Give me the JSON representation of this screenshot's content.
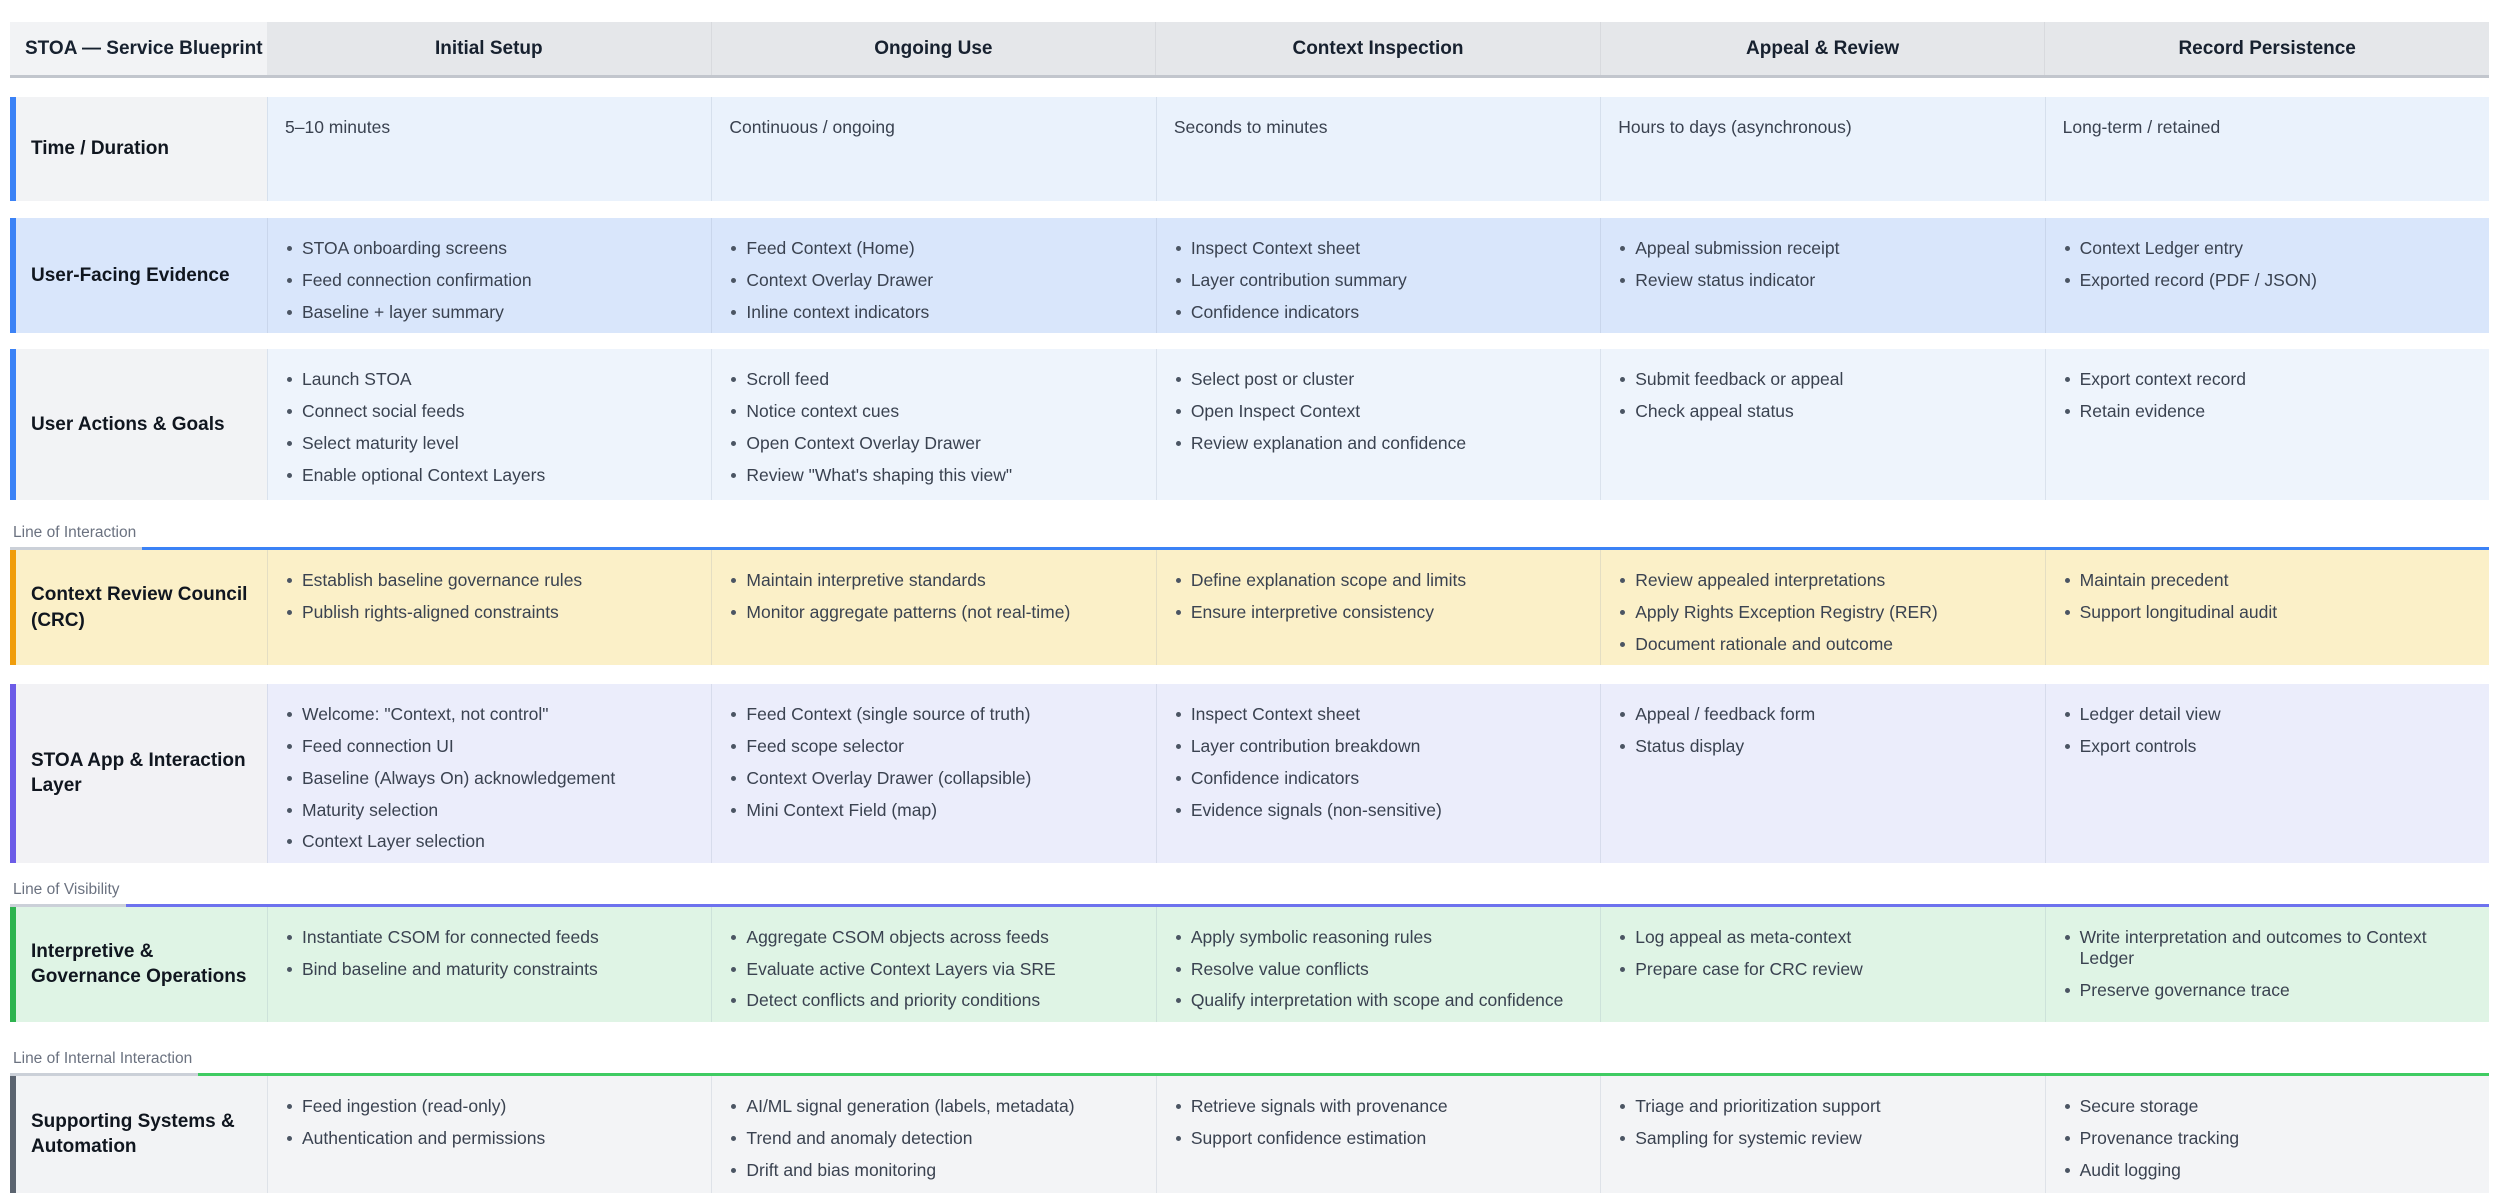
{
  "title": "STOA — Service Blueprint",
  "columns": [
    "Initial Setup",
    "Ongoing Use",
    "Context Inspection",
    "Appeal & Review",
    "Record Persistence"
  ],
  "sections": [
    {
      "kind": "row",
      "id": "time-duration",
      "label": "Time / Duration",
      "accent": "#3b82f6",
      "label_bg": "#f2f3f5",
      "cell_bg": "#eaf2fc",
      "cell_type": "text",
      "cells": [
        "5–10 minutes",
        "Continuous / ongoing",
        "Seconds to minutes",
        "Hours to days (asynchronous)",
        "Long-term / retained"
      ]
    },
    {
      "kind": "row",
      "id": "user-facing-evidence",
      "label": "User-Facing Evidence",
      "accent": "#3b82f6",
      "label_bg": "#d9e6fb",
      "cell_bg": "#d9e6fb",
      "cell_type": "bullets",
      "cells": [
        [
          "STOA onboarding screens",
          "Feed connection confirmation",
          "Baseline + layer summary"
        ],
        [
          "Feed Context (Home)",
          "Context Overlay Drawer",
          "Inline context indicators"
        ],
        [
          "Inspect Context sheet",
          "Layer contribution summary",
          "Confidence indicators"
        ],
        [
          "Appeal submission receipt",
          "Review status indicator"
        ],
        [
          "Context Ledger entry",
          "Exported record (PDF / JSON)"
        ]
      ]
    },
    {
      "kind": "row",
      "id": "user-actions-goals",
      "label": "User Actions & Goals",
      "accent": "#3b82f6",
      "label_bg": "#f2f3f5",
      "cell_bg": "#eef4fc",
      "cell_type": "bullets",
      "cells": [
        [
          "Launch STOA",
          "Connect social feeds",
          "Select maturity level",
          "Enable optional Context Layers"
        ],
        [
          "Scroll feed",
          "Notice context cues",
          "Open Context Overlay Drawer",
          "Review \"What's shaping this view\""
        ],
        [
          "Select post or cluster",
          "Open Inspect Context",
          "Review explanation and confidence"
        ],
        [
          "Submit feedback or appeal",
          "Check appeal status"
        ],
        [
          "Export context record",
          "Retain evidence"
        ]
      ]
    },
    {
      "kind": "line",
      "id": "line-of-interaction",
      "label": "Line of Interaction",
      "color": "#3b82f6"
    },
    {
      "kind": "row",
      "id": "context-review-council",
      "label": "Context Review Council (CRC)",
      "accent": "#f09d0b",
      "label_bg": "#fbf0c8",
      "cell_bg": "#fbf0c8",
      "cell_type": "bullets",
      "cells": [
        [
          "Establish baseline governance rules",
          "Publish rights-aligned constraints"
        ],
        [
          "Maintain interpretive standards",
          "Monitor aggregate patterns (not real-time)"
        ],
        [
          "Define explanation scope and limits",
          "Ensure interpretive consistency"
        ],
        [
          "Review appealed interpretations",
          "Apply Rights Exception Registry (RER)",
          "Document rationale and outcome"
        ],
        [
          "Maintain precedent",
          "Support longitudinal audit"
        ]
      ]
    },
    {
      "kind": "row",
      "id": "stoa-app-interaction-layer",
      "label": "STOA App & Interaction Layer",
      "accent": "#6c5ce7",
      "label_bg": "#f2f2f5",
      "cell_bg": "#ebedfb",
      "cell_type": "bullets",
      "cells": [
        [
          "Welcome: \"Context, not control\"",
          "Feed connection UI",
          "Baseline (Always On) acknowledgement",
          "Maturity selection",
          "Context Layer selection"
        ],
        [
          "Feed Context (single source of truth)",
          "Feed scope selector",
          "Context Overlay Drawer (collapsible)",
          "Mini Context Field (map)"
        ],
        [
          "Inspect Context sheet",
          "Layer contribution breakdown",
          "Confidence indicators",
          "Evidence signals (non-sensitive)"
        ],
        [
          "Appeal / feedback form",
          "Status display"
        ],
        [
          "Ledger detail view",
          "Export controls"
        ]
      ]
    },
    {
      "kind": "line",
      "id": "line-of-visibility",
      "label": "Line of Visibility",
      "color": "#6d72ee"
    },
    {
      "kind": "row",
      "id": "interpretive-governance-operations",
      "label": "Interpretive & Governance Operations",
      "accent": "#2eb34f",
      "label_bg": "#dff4e5",
      "cell_bg": "#dff4e5",
      "cell_type": "bullets",
      "cells": [
        [
          "Instantiate CSOM for connected feeds",
          "Bind baseline and maturity constraints"
        ],
        [
          "Aggregate CSOM objects across feeds",
          "Evaluate active Context Layers via SRE",
          "Detect conflicts and priority conditions"
        ],
        [
          "Apply symbolic reasoning rules",
          "Resolve value conflicts",
          "Qualify interpretation with scope and confidence"
        ],
        [
          "Log appeal as meta-context",
          "Prepare case for CRC review"
        ],
        [
          "Write interpretation and outcomes to Context Ledger",
          "Preserve governance trace"
        ]
      ]
    },
    {
      "kind": "line",
      "id": "line-of-internal-interaction",
      "label": "Line of Internal Interaction",
      "color": "#3fcb62"
    },
    {
      "kind": "row",
      "id": "supporting-systems-automation",
      "label": "Supporting Systems & Automation",
      "accent": "#5b6470",
      "label_bg": "#f2f3f5",
      "cell_bg": "#f3f4f6",
      "cell_type": "bullets",
      "cells": [
        [
          "Feed ingestion (read-only)",
          "Authentication and permissions"
        ],
        [
          "AI/ML signal generation (labels, metadata)",
          "Trend and anomaly detection",
          "Drift and bias monitoring"
        ],
        [
          "Retrieve signals with provenance",
          "Support confidence estimation"
        ],
        [
          "Triage and prioritization support",
          "Sampling for systemic review"
        ],
        [
          "Secure storage",
          "Provenance tracking",
          "Audit logging"
        ]
      ]
    }
  ]
}
